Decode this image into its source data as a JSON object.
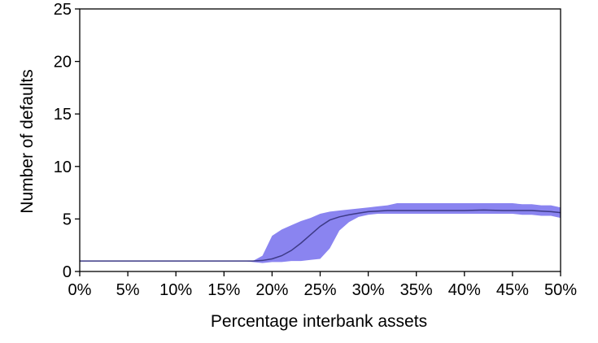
{
  "chart_data": {
    "type": "area",
    "xlabel": "Percentage interbank assets",
    "ylabel": "Number of defaults",
    "xlim": [
      0,
      50
    ],
    "ylim": [
      0,
      25
    ],
    "x_ticks": [
      {
        "value": 0,
        "label": "0%"
      },
      {
        "value": 5,
        "label": "5%"
      },
      {
        "value": 10,
        "label": "10%"
      },
      {
        "value": 15,
        "label": "15%"
      },
      {
        "value": 20,
        "label": "20%"
      },
      {
        "value": 25,
        "label": "25%"
      },
      {
        "value": 30,
        "label": "30%"
      },
      {
        "value": 35,
        "label": "35%"
      },
      {
        "value": 40,
        "label": "40%"
      },
      {
        "value": 45,
        "label": "45%"
      },
      {
        "value": 50,
        "label": "50%"
      }
    ],
    "y_ticks": [
      {
        "value": 0,
        "label": "0"
      },
      {
        "value": 5,
        "label": "5"
      },
      {
        "value": 10,
        "label": "10"
      },
      {
        "value": 15,
        "label": "15"
      },
      {
        "value": 20,
        "label": "20"
      },
      {
        "value": 25,
        "label": "25"
      }
    ],
    "grid": false,
    "colors": {
      "band": "#8a84f0",
      "line": "#3d3a86",
      "axis": "#000000"
    },
    "series": [
      {
        "role": "mean",
        "x": [
          0,
          5,
          10,
          15,
          17,
          18,
          19,
          20,
          21,
          22,
          23,
          24,
          25,
          26,
          27,
          28,
          29,
          30,
          31,
          32,
          33,
          34,
          35,
          37,
          40,
          42,
          44,
          45,
          46,
          47,
          48,
          49,
          50
        ],
        "values": [
          1.0,
          1.0,
          1.0,
          1.0,
          1.0,
          1.0,
          1.05,
          1.2,
          1.5,
          2.0,
          2.7,
          3.5,
          4.3,
          4.9,
          5.2,
          5.4,
          5.55,
          5.7,
          5.75,
          5.8,
          5.8,
          5.8,
          5.8,
          5.8,
          5.8,
          5.85,
          5.8,
          5.8,
          5.8,
          5.8,
          5.75,
          5.7,
          5.6
        ]
      },
      {
        "role": "band",
        "x": [
          0,
          5,
          10,
          15,
          17,
          18,
          19,
          20,
          21,
          22,
          23,
          24,
          25,
          26,
          27,
          28,
          29,
          30,
          31,
          32,
          33,
          34,
          35,
          37,
          40,
          42,
          44,
          45,
          46,
          47,
          48,
          49,
          50
        ],
        "upper": [
          1.0,
          1.0,
          1.0,
          1.0,
          1.0,
          1.0,
          1.5,
          3.4,
          4.0,
          4.4,
          4.8,
          5.1,
          5.5,
          5.7,
          5.8,
          5.9,
          6.0,
          6.1,
          6.2,
          6.3,
          6.5,
          6.5,
          6.5,
          6.5,
          6.5,
          6.5,
          6.5,
          6.5,
          6.4,
          6.4,
          6.3,
          6.3,
          6.1
        ],
        "lower": [
          1.0,
          1.0,
          1.0,
          1.0,
          1.0,
          0.9,
          0.8,
          0.9,
          0.9,
          1.0,
          1.0,
          1.1,
          1.2,
          2.2,
          3.9,
          4.7,
          5.2,
          5.4,
          5.5,
          5.5,
          5.5,
          5.5,
          5.5,
          5.5,
          5.5,
          5.5,
          5.5,
          5.5,
          5.4,
          5.4,
          5.3,
          5.3,
          5.1
        ]
      }
    ]
  }
}
